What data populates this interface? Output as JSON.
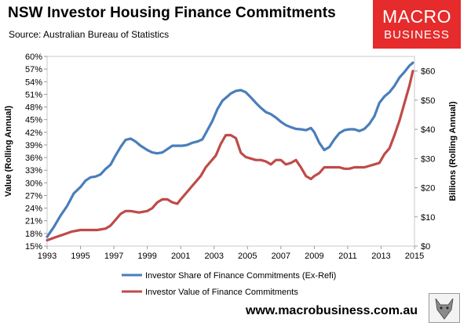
{
  "header": {
    "title": "NSW Investor Housing Finance Commitments",
    "source": "Source: Australian Bureau of Statistics"
  },
  "logo": {
    "line1": "MACRO",
    "line2": "BUSINESS"
  },
  "footer": {
    "url": "www.macrobusiness.com.au",
    "mascot_icon": "wolf-icon"
  },
  "colors": {
    "series1": "#4a7ebb",
    "series2": "#be4b48",
    "logo_bg": "#e52b2b"
  },
  "chart_data": {
    "type": "line",
    "title": "NSW Investor Housing Finance Commitments",
    "xlabel": "",
    "ylabel_left": "Value (Rolling Annual)",
    "ylabel_right": "Billions (Rolling Annual)",
    "xlim": [
      1993,
      2015
    ],
    "ylim_left": [
      0.15,
      0.6
    ],
    "ylim_right": [
      0,
      65
    ],
    "x_ticks": [
      "1993",
      "1995",
      "1997",
      "1999",
      "2001",
      "2003",
      "2005",
      "2007",
      "2009",
      "2011",
      "2013",
      "2015"
    ],
    "y_left_ticks": [
      "15%",
      "18%",
      "21%",
      "24%",
      "27%",
      "30%",
      "33%",
      "36%",
      "39%",
      "42%",
      "45%",
      "48%",
      "51%",
      "54%",
      "57%",
      "60%"
    ],
    "y_right_ticks": [
      "$0",
      "$10",
      "$20",
      "$30",
      "$40",
      "$50",
      "$60"
    ],
    "grid": false,
    "legend_position": "bottom",
    "series": [
      {
        "name": "Investor Share of Finance Commitments (Ex-Refi)",
        "axis": "left",
        "color": "#4a7ebb",
        "x": [
          1993.0,
          1993.4,
          1993.8,
          1994.2,
          1994.6,
          1995.0,
          1995.3,
          1995.6,
          1995.9,
          1996.2,
          1996.5,
          1996.8,
          1997.1,
          1997.4,
          1997.7,
          1998.0,
          1998.3,
          1998.6,
          1999.0,
          1999.3,
          1999.6,
          1999.9,
          2000.2,
          2000.5,
          2000.8,
          2001.1,
          2001.4,
          2001.7,
          2002.0,
          2002.3,
          2002.6,
          2002.9,
          2003.2,
          2003.5,
          2003.8,
          2004.0,
          2004.3,
          2004.6,
          2004.9,
          2005.2,
          2005.5,
          2005.8,
          2006.1,
          2006.4,
          2006.7,
          2007.0,
          2007.3,
          2007.6,
          2007.9,
          2008.2,
          2008.5,
          2008.8,
          2009.0,
          2009.3,
          2009.6,
          2009.9,
          2010.2,
          2010.5,
          2010.8,
          2011.1,
          2011.4,
          2011.7,
          2012.0,
          2012.3,
          2012.6,
          2012.9,
          2013.2,
          2013.5,
          2013.8,
          2014.1,
          2014.4,
          2014.7,
          2014.9
        ],
        "values": [
          0.172,
          0.195,
          0.222,
          0.245,
          0.275,
          0.29,
          0.305,
          0.313,
          0.315,
          0.32,
          0.333,
          0.343,
          0.365,
          0.385,
          0.402,
          0.405,
          0.398,
          0.388,
          0.378,
          0.372,
          0.37,
          0.372,
          0.38,
          0.388,
          0.388,
          0.388,
          0.39,
          0.395,
          0.398,
          0.403,
          0.425,
          0.447,
          0.475,
          0.495,
          0.505,
          0.512,
          0.518,
          0.52,
          0.515,
          0.503,
          0.49,
          0.478,
          0.468,
          0.463,
          0.455,
          0.445,
          0.437,
          0.432,
          0.428,
          0.427,
          0.425,
          0.43,
          0.42,
          0.395,
          0.378,
          0.385,
          0.403,
          0.418,
          0.425,
          0.427,
          0.427,
          0.423,
          0.428,
          0.44,
          0.458,
          0.49,
          0.505,
          0.515,
          0.53,
          0.55,
          0.563,
          0.578,
          0.585
        ]
      },
      {
        "name": "Investor Value of Finance Commitments",
        "axis": "right",
        "color": "#be4b48",
        "x": [
          1993.0,
          1993.5,
          1994.0,
          1994.5,
          1995.0,
          1995.5,
          1996.0,
          1996.5,
          1996.8,
          1997.1,
          1997.4,
          1997.7,
          1998.0,
          1998.5,
          1999.0,
          1999.3,
          1999.6,
          1999.9,
          2000.2,
          2000.5,
          2000.8,
          2001.0,
          2001.3,
          2001.6,
          2001.9,
          2002.2,
          2002.5,
          2002.8,
          2003.1,
          2003.4,
          2003.7,
          2004.0,
          2004.3,
          2004.6,
          2004.9,
          2005.2,
          2005.5,
          2005.8,
          2006.1,
          2006.4,
          2006.7,
          2007.0,
          2007.3,
          2007.6,
          2007.9,
          2008.2,
          2008.5,
          2008.8,
          2009.0,
          2009.3,
          2009.6,
          2009.9,
          2010.2,
          2010.5,
          2010.8,
          2011.1,
          2011.4,
          2011.7,
          2012.0,
          2012.3,
          2012.6,
          2012.9,
          2013.2,
          2013.5,
          2013.8,
          2014.1,
          2014.4,
          2014.7,
          2014.9
        ],
        "values": [
          2,
          3,
          4,
          5,
          5.5,
          5.5,
          5.5,
          6,
          7,
          9,
          11,
          12,
          12,
          11.5,
          12,
          13,
          15,
          16,
          16,
          15,
          14.5,
          16,
          18,
          20,
          22,
          24,
          27,
          29,
          31,
          35,
          38,
          38,
          37,
          32,
          30.5,
          30,
          29.5,
          29.5,
          29,
          28,
          29.5,
          29.5,
          28,
          28.5,
          29.5,
          27,
          24,
          23,
          24,
          25,
          27,
          27,
          27,
          27,
          26.5,
          26.5,
          27,
          27,
          27,
          27.5,
          28,
          28.5,
          31.5,
          33.5,
          38,
          43,
          49,
          55,
          60
        ]
      }
    ]
  }
}
